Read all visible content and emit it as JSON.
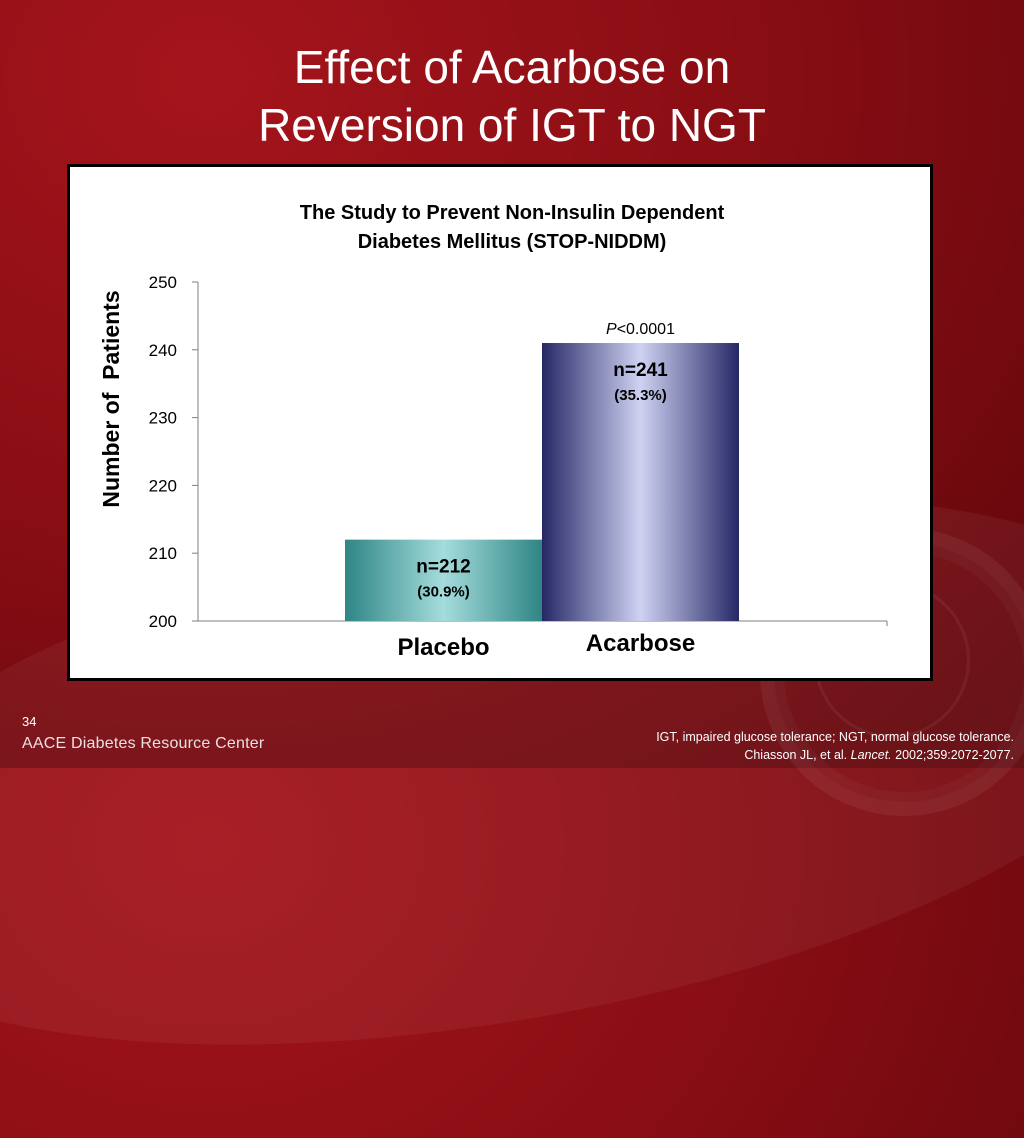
{
  "slide": {
    "title_line1": "Effect of Acarbose on",
    "title_line2": "Reversion of IGT to NGT",
    "slide_number": "34",
    "footer_logo": "AACE Diabetes Resource Center",
    "footnote_line1": "IGT, impaired glucose tolerance; NGT, normal glucose tolerance.",
    "footnote_ref_prefix": "Chiasson JL, et al. ",
    "footnote_ref_journal": "Lancet.",
    "footnote_ref_suffix": " 2002;359:2072-2077."
  },
  "colors": {
    "background": "#8a0e14",
    "placebo_bar": "#3e9595",
    "acarbose_bar": "#2c2e6e"
  },
  "chart_data": {
    "type": "bar",
    "title_line1": "The Study to Prevent Non-Insulin Dependent",
    "title_line2": "Diabetes Mellitus (STOP-NIDDM)",
    "ylabel": "Number of  Patients",
    "xlabel": "",
    "ylim": [
      200,
      250
    ],
    "yticks": [
      200,
      210,
      220,
      230,
      240,
      250
    ],
    "categories": [
      "Placebo",
      "Acarbose"
    ],
    "values": [
      212,
      241
    ],
    "bar_labels": [
      "n=212",
      "n=241"
    ],
    "bar_percent_labels": [
      "(30.9%)",
      "(35.3%)"
    ],
    "annotation": {
      "italic": "P",
      "text": "<0.0001",
      "category": "Acarbose"
    },
    "grid": false,
    "legend": "none"
  }
}
